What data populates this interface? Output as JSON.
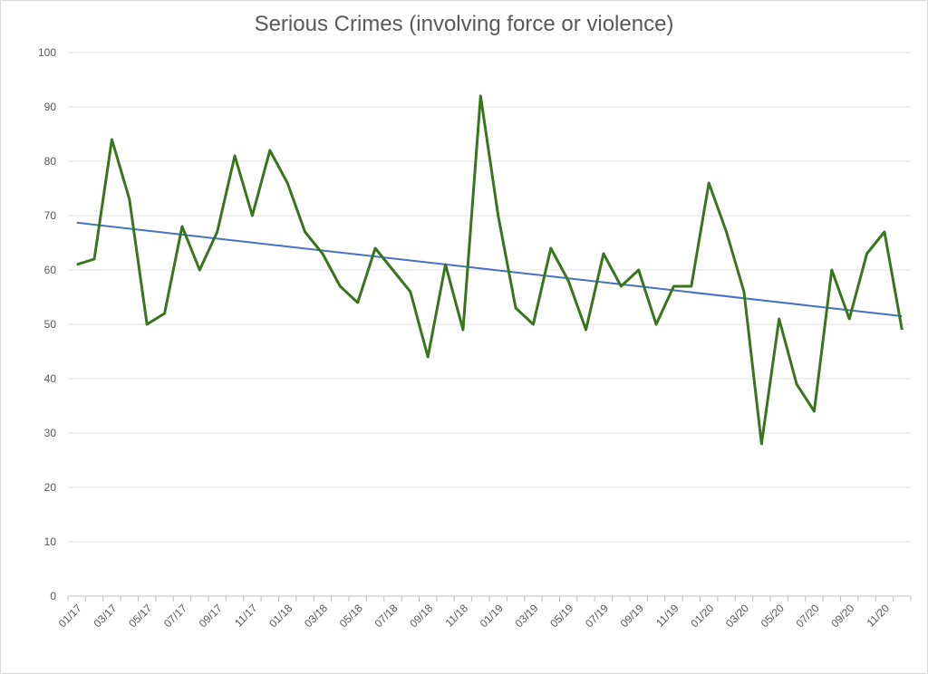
{
  "chart_data": {
    "type": "line",
    "title": "Serious Crimes (involving force or violence)",
    "xlabel": "",
    "ylabel": "",
    "ylim": [
      0,
      100
    ],
    "y_ticks": [
      0,
      10,
      20,
      30,
      40,
      50,
      60,
      70,
      80,
      90,
      100
    ],
    "x_ticks": [
      "01/17",
      "03/17",
      "05/17",
      "07/17",
      "09/17",
      "11/17",
      "01/18",
      "03/18",
      "05/18",
      "07/18",
      "09/18",
      "11/18",
      "01/19",
      "03/19",
      "05/19",
      "07/19",
      "09/19",
      "11/19",
      "01/20",
      "03/20",
      "05/20",
      "07/20",
      "09/20",
      "11/20"
    ],
    "grid": true,
    "legend": "none",
    "series": [
      {
        "values": [
          61,
          62,
          84,
          73,
          50,
          52,
          68,
          60,
          67,
          81,
          70,
          82,
          76,
          67,
          63,
          57,
          54,
          64,
          60,
          56,
          44,
          61,
          49,
          92,
          70,
          53,
          50,
          64,
          58,
          49,
          63,
          57,
          60,
          50,
          57,
          57,
          76,
          67,
          56,
          28,
          51,
          39,
          34,
          60,
          51,
          63,
          67,
          49
        ],
        "color": "#38761d"
      },
      {
        "trendline": "linear",
        "start": 68.7,
        "end": 51.5,
        "color": "#4472c4"
      }
    ]
  }
}
